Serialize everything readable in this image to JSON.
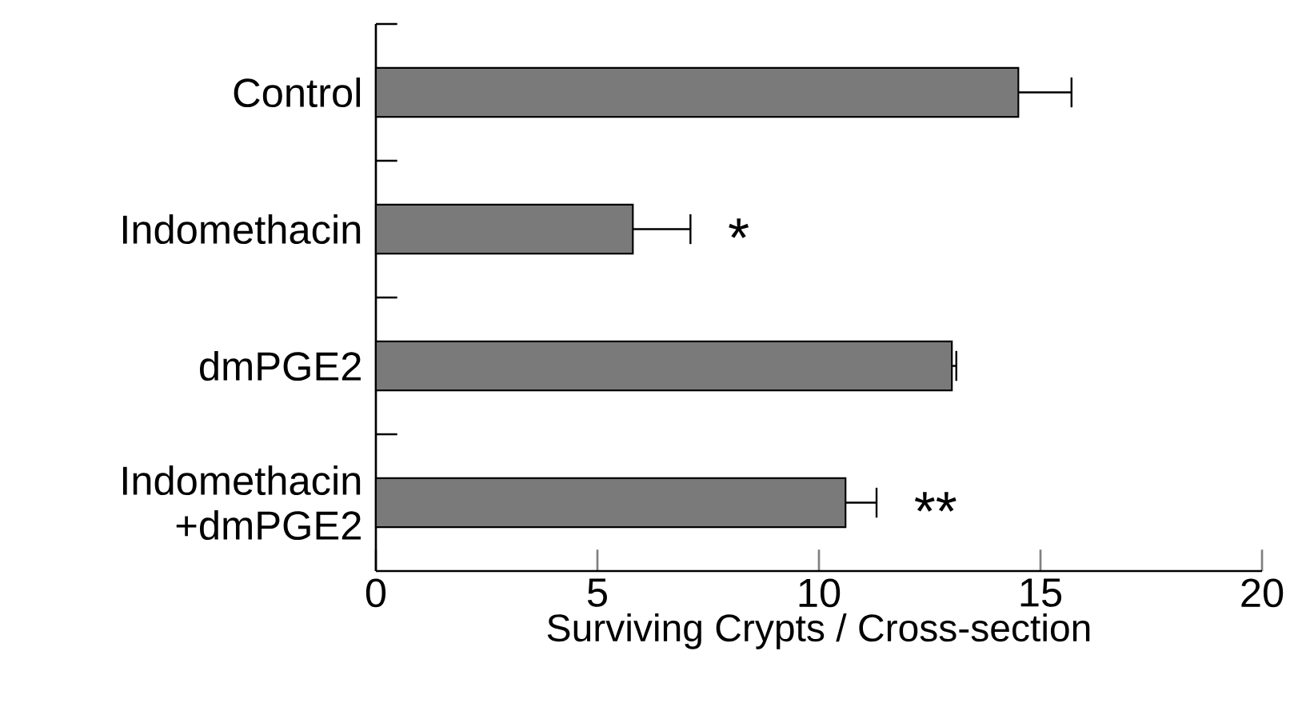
{
  "chart_data": {
    "type": "bar",
    "orientation": "horizontal",
    "xlabel": "Surviving Crypts / Cross-section",
    "categories": [
      "Control",
      "Indomethacin",
      "dmPGE2",
      "Indomethacin +dmPGE2"
    ],
    "values": [
      14.5,
      5.8,
      13.0,
      10.6
    ],
    "errors": [
      [
        14.5,
        15.7
      ],
      [
        5.8,
        7.1
      ],
      [
        13.0,
        13.1
      ],
      [
        10.6,
        11.3
      ]
    ],
    "color": "#7a7a7a",
    "xlim": [
      0,
      20
    ],
    "xticks": [
      0,
      5,
      10,
      15,
      20
    ],
    "annotations": [
      {
        "text": "*",
        "x": 7.1,
        "y": "Indomethacin"
      },
      {
        "text": "**",
        "x": 11.3,
        "y": "Indomethacin +dmPGE2"
      }
    ]
  }
}
